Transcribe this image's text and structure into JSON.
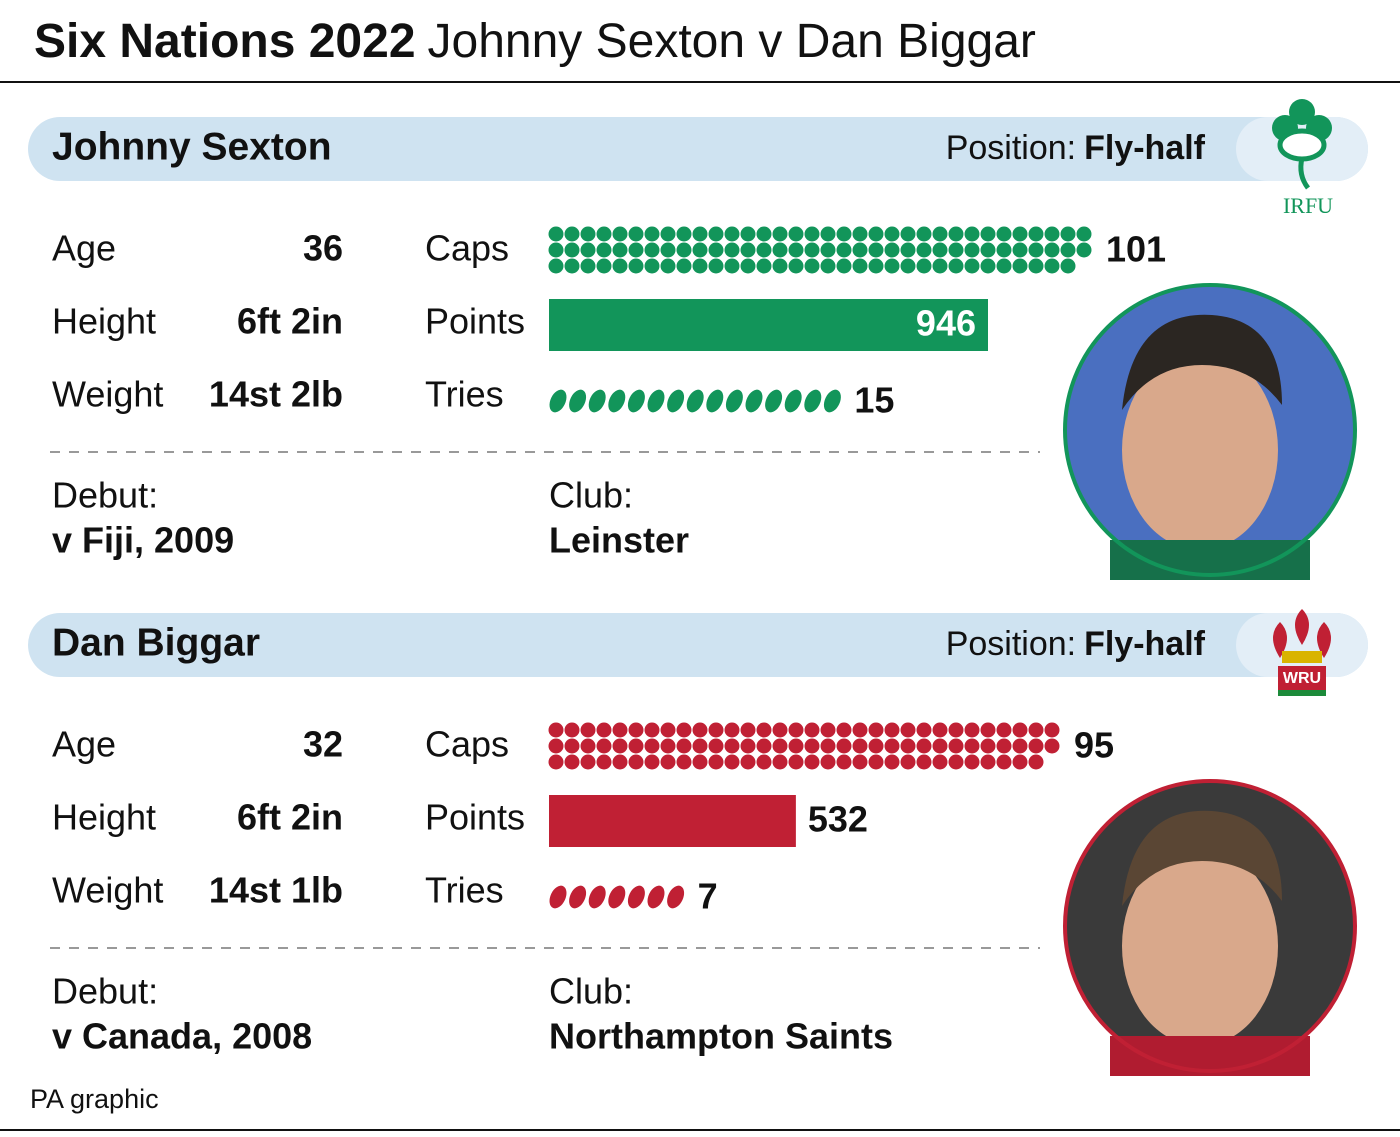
{
  "title": {
    "bold": "Six Nations 2022",
    "rest": "Johnny Sexton v Dan Biggar"
  },
  "players": [
    {
      "name": "Johnny Sexton",
      "position_label": "Position:",
      "position": "Fly-half",
      "logo": "IRFU",
      "color": "#12955a",
      "stats": [
        {
          "label": "Age",
          "value": 36
        },
        {
          "label": "Height",
          "value": "6ft 2in"
        },
        {
          "label": "Weight",
          "value": "14st 2lb"
        }
      ],
      "caps_label": "Caps",
      "caps": 101,
      "points_label": "Points",
      "points": 946,
      "tries_label": "Tries",
      "tries": 15,
      "debut_label": "Debut:",
      "debut": "v Fiji, 2009",
      "club_label": "Club:",
      "club": "Leinster"
    },
    {
      "name": "Dan Biggar",
      "position_label": "Position:",
      "position": "Fly-half",
      "logo": "WRU",
      "color": "#c02034",
      "stats": [
        {
          "label": "Age",
          "value": 32
        },
        {
          "label": "Height",
          "value": "6ft 2in"
        },
        {
          "label": "Weight",
          "value": "14st 1lb"
        }
      ],
      "caps_label": "Caps",
      "caps": 95,
      "points_label": "Points",
      "points": 532,
      "tries_label": "Tries",
      "tries": 7,
      "debut_label": "Debut:",
      "debut": "v Canada, 2008",
      "club_label": "Club:",
      "club": "Northampton Saints"
    }
  ],
  "source": "PA graphic"
}
